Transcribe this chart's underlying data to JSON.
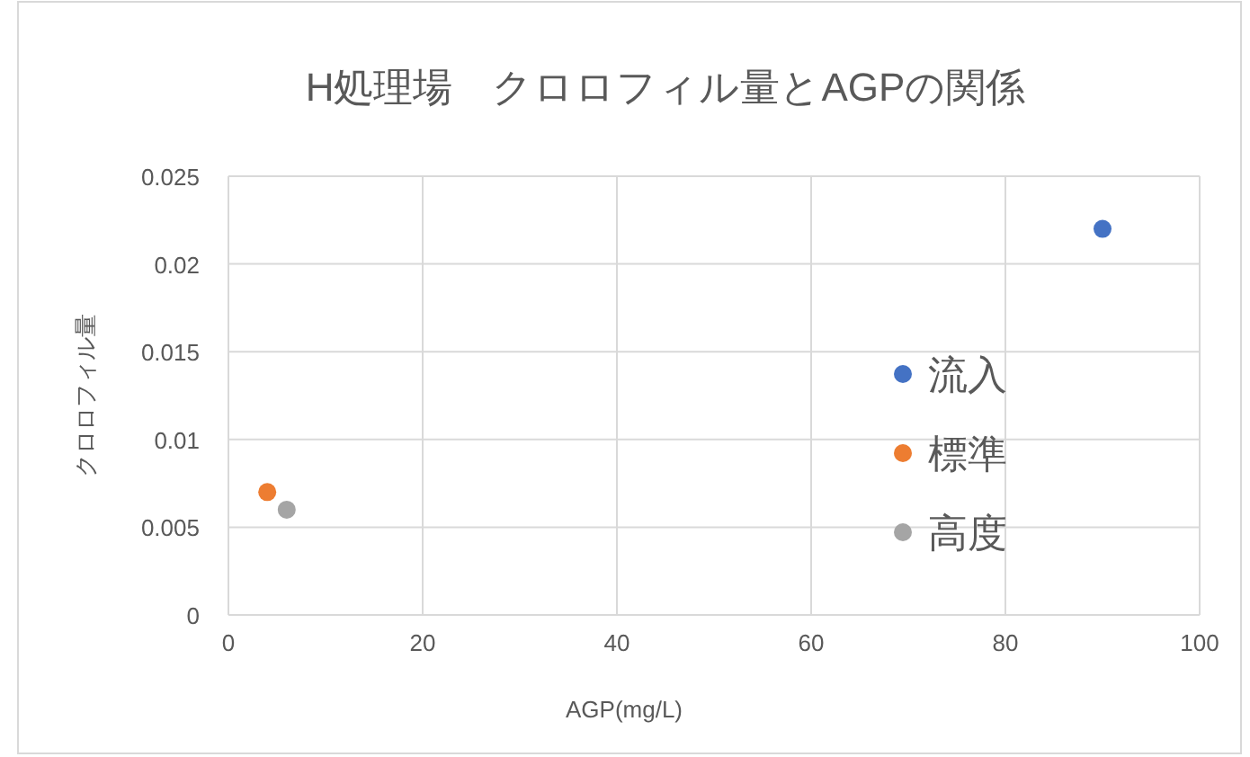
{
  "chart_data": {
    "type": "scatter",
    "title": "H処理場　クロロフィル量とAGPの関係",
    "xlabel": "AGP(mg/L)",
    "ylabel": "クロロフィル量",
    "xlim": [
      0,
      100
    ],
    "xticks": [
      0,
      20,
      40,
      60,
      80,
      100
    ],
    "ylim": [
      0,
      0.025
    ],
    "yticks": [
      0,
      0.005,
      0.01,
      0.015,
      0.02,
      0.025
    ],
    "grid": true,
    "legend": "right",
    "marker": "circle",
    "series": [
      {
        "name": "流入",
        "color": "#4472c4",
        "x": [
          90
        ],
        "values": [
          0.022
        ]
      },
      {
        "name": "標準",
        "color": "#ed7d31",
        "x": [
          4
        ],
        "values": [
          0.007
        ]
      },
      {
        "name": "高度",
        "color": "#a5a5a5",
        "x": [
          6
        ],
        "values": [
          0.006
        ]
      }
    ]
  }
}
